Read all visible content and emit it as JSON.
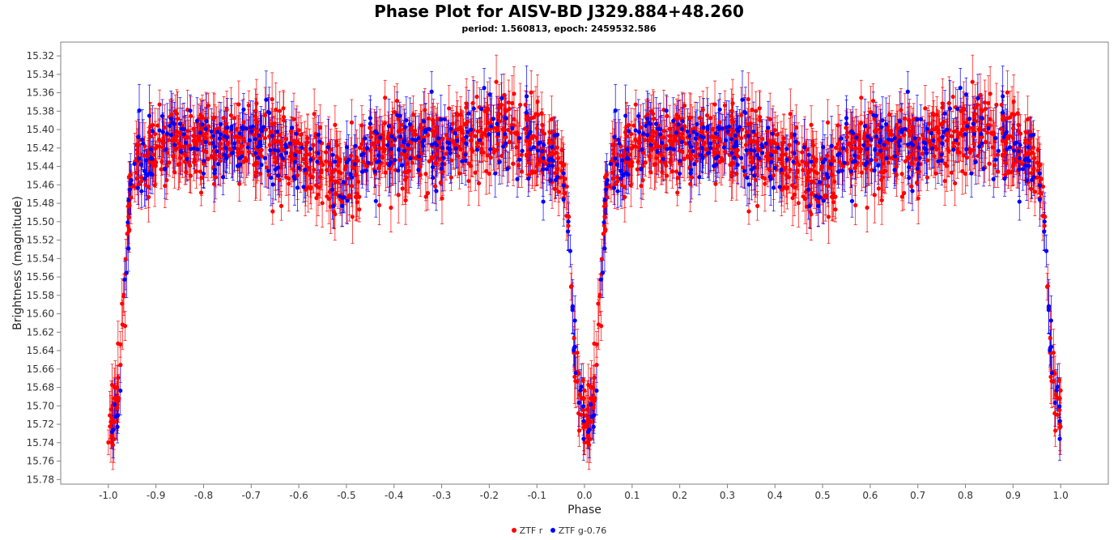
{
  "chart_data": {
    "type": "scatter",
    "title": "Phase Plot for AISV-BD J329.884+48.260",
    "subtitle": "period: 1.560813, epoch: 2459532.586",
    "xlabel": "Phase",
    "ylabel": "Brightness (magnitude)",
    "xlim": [
      -1.1,
      1.1
    ],
    "ylim": [
      15.785,
      15.305
    ],
    "y_inverted": true,
    "grid": false,
    "legend_position": "bottom",
    "x_ticks": [
      -1.0,
      -0.9,
      -0.8,
      -0.7,
      -0.6,
      -0.5,
      -0.4,
      -0.3,
      -0.2,
      -0.1,
      0.0,
      0.1,
      0.2,
      0.3,
      0.4,
      0.5,
      0.6,
      0.7,
      0.8,
      0.9,
      1.0
    ],
    "y_ticks": [
      15.32,
      15.34,
      15.36,
      15.38,
      15.4,
      15.42,
      15.44,
      15.46,
      15.48,
      15.5,
      15.52,
      15.54,
      15.56,
      15.58,
      15.6,
      15.62,
      15.64,
      15.66,
      15.68,
      15.7,
      15.72,
      15.74,
      15.76,
      15.78
    ],
    "light_curve_model": {
      "description_points_phase": [
        0.0,
        0.01,
        0.02,
        0.025,
        0.03,
        0.035,
        0.04,
        0.045,
        0.05,
        0.06,
        0.07,
        0.1,
        0.2,
        0.3,
        0.35,
        0.4,
        0.45,
        0.48,
        0.5,
        0.52,
        0.55,
        0.6,
        0.7,
        0.8,
        0.9,
        0.95,
        0.96,
        0.965,
        0.97,
        0.975,
        0.98,
        0.99,
        1.0
      ],
      "description_points_mag": [
        15.72,
        15.71,
        15.69,
        15.66,
        15.62,
        15.57,
        15.52,
        15.48,
        15.46,
        15.44,
        15.43,
        15.42,
        15.41,
        15.41,
        15.42,
        15.43,
        15.44,
        15.45,
        15.46,
        15.45,
        15.43,
        15.42,
        15.42,
        15.4,
        15.42,
        15.44,
        15.46,
        15.5,
        15.55,
        15.6,
        15.65,
        15.7,
        15.72
      ]
    },
    "series": [
      {
        "name": "ZTF r",
        "color": "#ff0000",
        "count": 900,
        "scatter": 0.02,
        "error": 0.022
      },
      {
        "name": "ZTF g-0.76",
        "color": "#0000ff",
        "count": 330,
        "scatter": 0.022,
        "error": 0.024
      }
    ]
  }
}
